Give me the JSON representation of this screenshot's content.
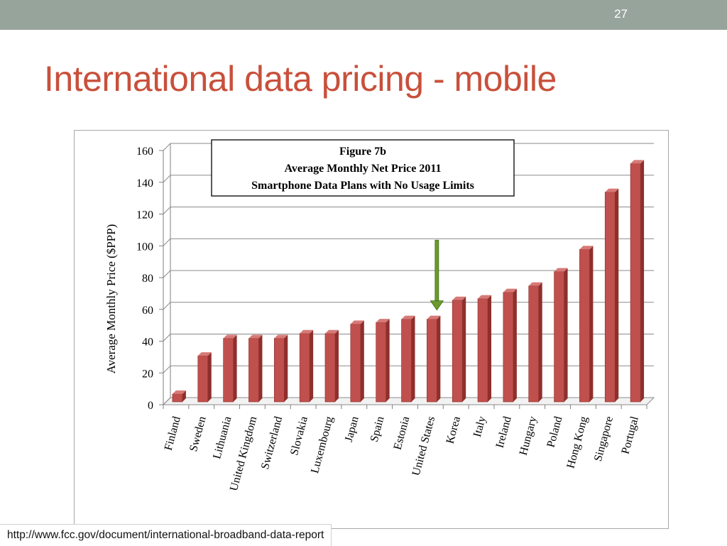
{
  "slide": {
    "number": "27",
    "title": "International data pricing - mobile",
    "source": "http://www.fcc.gov/document/international-broadband-data-report"
  },
  "colors": {
    "topbar": "#97a49c",
    "title": "#c8503b",
    "bar_front": "#c0504d",
    "arrow": "#6c9a2e"
  },
  "chart_data": {
    "type": "bar",
    "title_lines": [
      "Figure 7b",
      "Average Monthly Net Price 2011",
      "Smartphone Data Plans with No Usage Limits"
    ],
    "ylabel": "Average Monthly Price ($PPP)",
    "xlabel": "",
    "ylim": [
      0,
      160
    ],
    "yticks": [
      0,
      20,
      40,
      60,
      80,
      100,
      120,
      140,
      160
    ],
    "grid": true,
    "legend": "none",
    "three_d": true,
    "categories": [
      "Finland",
      "Sweden",
      "Lithuania",
      "United Kingdom",
      "Switzerland",
      "Slovakia",
      "Luxembourg",
      "Japan",
      "Spain",
      "Estonia",
      "United States",
      "Korea",
      "Italy",
      "Ireland",
      "Hungary",
      "Poland",
      "Hong Kong",
      "Singapore",
      "Portugal"
    ],
    "values": [
      5,
      29,
      40,
      40,
      40,
      43,
      43,
      49,
      50,
      52,
      52,
      64,
      65,
      69,
      73,
      82,
      96,
      132,
      150
    ],
    "annotation": {
      "type": "arrow",
      "direction": "down",
      "target": "United States"
    }
  }
}
